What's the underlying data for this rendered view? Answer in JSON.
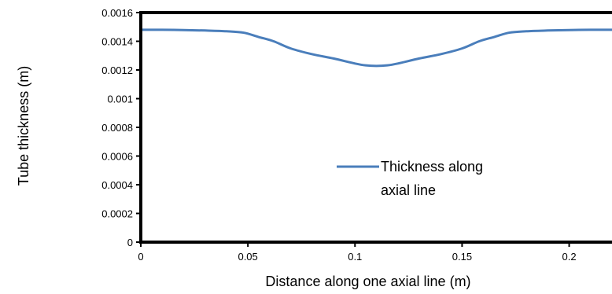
{
  "chart_data": {
    "type": "line",
    "xlabel": "Distance along one axial line (m)",
    "ylabel": "Tube thickness (m)",
    "xlim": [
      0,
      0.22
    ],
    "ylim": [
      0,
      0.0016
    ],
    "x_ticks": [
      "0",
      "0.05",
      "0.1",
      "0.15",
      "0.2"
    ],
    "y_ticks": [
      "0",
      "0.0002",
      "0.0004",
      "0.0006",
      "0.0008",
      "0.001",
      "0.0012",
      "0.0014",
      "0.0016"
    ],
    "legend": {
      "placement": "center-right",
      "lines": [
        "Thickness along",
        "axial line"
      ]
    },
    "grid": false,
    "line_color": "#4a7ebb",
    "series": [
      {
        "name": "Thickness along axial line",
        "x": [
          0,
          0.01,
          0.02,
          0.03,
          0.04,
          0.048,
          0.055,
          0.062,
          0.07,
          0.08,
          0.09,
          0.1,
          0.105,
          0.11,
          0.115,
          0.12,
          0.13,
          0.14,
          0.15,
          0.158,
          0.165,
          0.172,
          0.18,
          0.19,
          0.2,
          0.21,
          0.22
        ],
        "y": [
          0.00148,
          0.00148,
          0.001478,
          0.001475,
          0.00147,
          0.00146,
          0.00143,
          0.0014,
          0.00135,
          0.00131,
          0.00128,
          0.001245,
          0.001232,
          0.001228,
          0.001232,
          0.001245,
          0.00128,
          0.00131,
          0.00135,
          0.0014,
          0.00143,
          0.00146,
          0.00147,
          0.001475,
          0.001478,
          0.00148,
          0.00148
        ]
      }
    ]
  }
}
